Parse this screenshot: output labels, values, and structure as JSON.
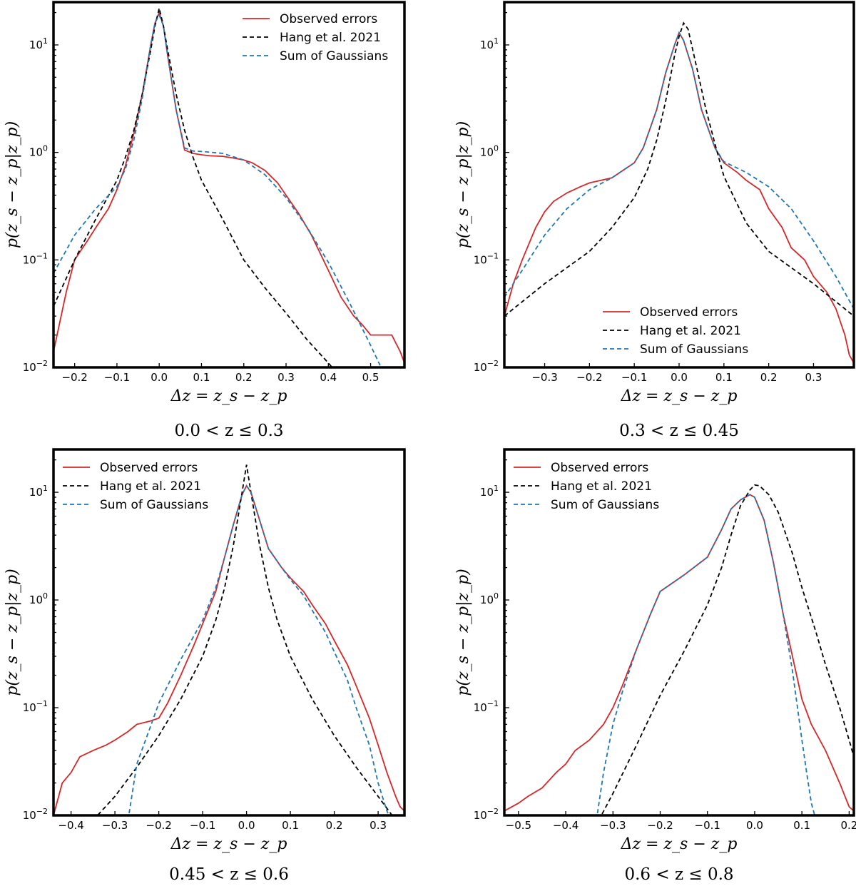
{
  "chart_data": [
    {
      "type": "line",
      "caption": "0.0 < z ≤ 0.3",
      "xlabel": "Δz = z_s − z_p",
      "ylabel": "p(z_s − z_p|z_p)",
      "xlim": [
        -0.25,
        0.58
      ],
      "ylim": [
        0.01,
        25
      ],
      "yscale": "log",
      "xticks": [
        -0.2,
        -0.1,
        0.0,
        0.1,
        0.2,
        0.3,
        0.4,
        0.5
      ],
      "xtick_labels": [
        "−0.2",
        "−0.1",
        "0.0",
        "0.1",
        "0.2",
        "0.3",
        "0.4",
        "0.5"
      ],
      "yticks": [
        0.01,
        0.1,
        1,
        10
      ],
      "legend_position": "top-right",
      "series": [
        {
          "name": "Observed errors",
          "color": "#d62728",
          "dash": "solid",
          "x": [
            -0.25,
            -0.22,
            -0.2,
            -0.17,
            -0.15,
            -0.12,
            -0.1,
            -0.08,
            -0.06,
            -0.04,
            -0.02,
            -0.01,
            0.0,
            0.01,
            0.02,
            0.04,
            0.06,
            0.08,
            0.1,
            0.12,
            0.15,
            0.18,
            0.2,
            0.22,
            0.25,
            0.28,
            0.3,
            0.33,
            0.36,
            0.4,
            0.43,
            0.46,
            0.48,
            0.5,
            0.52,
            0.55,
            0.57,
            0.58
          ],
          "y": [
            0.014,
            0.05,
            0.1,
            0.15,
            0.2,
            0.3,
            0.45,
            0.75,
            1.5,
            3.5,
            10,
            16,
            20,
            15,
            8,
            2.5,
            1.05,
            0.98,
            0.95,
            0.93,
            0.92,
            0.88,
            0.85,
            0.8,
            0.68,
            0.52,
            0.4,
            0.27,
            0.17,
            0.08,
            0.045,
            0.03,
            0.025,
            0.02,
            0.02,
            0.02,
            0.014,
            0.011
          ]
        },
        {
          "name": "Hang et al. 2021",
          "color": "#000000",
          "dash": "dashed",
          "x": [
            -0.25,
            -0.2,
            -0.15,
            -0.1,
            -0.08,
            -0.06,
            -0.04,
            -0.02,
            -0.01,
            0.0,
            0.01,
            0.02,
            0.04,
            0.06,
            0.08,
            0.1,
            0.15,
            0.2,
            0.25,
            0.3,
            0.35,
            0.4,
            0.43
          ],
          "y": [
            0.037,
            0.1,
            0.24,
            0.55,
            0.9,
            1.6,
            3.5,
            9,
            15,
            22,
            15,
            9,
            3.5,
            1.6,
            0.9,
            0.55,
            0.24,
            0.1,
            0.055,
            0.032,
            0.018,
            0.011,
            0.008
          ]
        },
        {
          "name": "Sum of Gaussians",
          "color": "#1f77b4",
          "dash": "dashed",
          "x": [
            -0.25,
            -0.2,
            -0.15,
            -0.1,
            -0.08,
            -0.06,
            -0.04,
            -0.02,
            -0.01,
            0.0,
            0.01,
            0.02,
            0.04,
            0.06,
            0.08,
            0.1,
            0.15,
            0.2,
            0.25,
            0.3,
            0.35,
            0.4,
            0.45,
            0.5,
            0.53
          ],
          "y": [
            0.075,
            0.17,
            0.3,
            0.48,
            0.7,
            1.3,
            3.2,
            10,
            16,
            19,
            15,
            8,
            2.5,
            1.1,
            1.03,
            1.02,
            0.98,
            0.85,
            0.62,
            0.38,
            0.2,
            0.095,
            0.04,
            0.016,
            0.009
          ]
        }
      ]
    },
    {
      "type": "line",
      "caption": "0.3 < z ≤ 0.45",
      "xlabel": "Δz = z_s − z_p",
      "ylabel": "p(z_s − z_p|z_p)",
      "xlim": [
        -0.39,
        0.39
      ],
      "ylim": [
        0.01,
        25
      ],
      "yscale": "log",
      "xticks": [
        -0.3,
        -0.2,
        -0.1,
        0.0,
        0.1,
        0.2,
        0.3
      ],
      "xtick_labels": [
        "−0.3",
        "−0.2",
        "−0.1",
        "0.0",
        "0.1",
        "0.2",
        "0.3"
      ],
      "yticks": [
        0.01,
        0.1,
        1,
        10
      ],
      "legend_position": "lower-center",
      "series": [
        {
          "name": "Observed errors",
          "color": "#d62728",
          "dash": "solid",
          "x": [
            -0.39,
            -0.37,
            -0.35,
            -0.32,
            -0.3,
            -0.28,
            -0.25,
            -0.22,
            -0.2,
            -0.15,
            -0.1,
            -0.08,
            -0.05,
            -0.03,
            -0.01,
            0.0,
            0.01,
            0.03,
            0.05,
            0.08,
            0.1,
            0.13,
            0.15,
            0.18,
            0.2,
            0.23,
            0.25,
            0.28,
            0.3,
            0.33,
            0.35,
            0.37,
            0.38,
            0.39
          ],
          "y": [
            0.03,
            0.06,
            0.1,
            0.2,
            0.28,
            0.35,
            0.42,
            0.48,
            0.52,
            0.58,
            0.8,
            1.1,
            2.5,
            5.5,
            10,
            13,
            11,
            6,
            2.5,
            1.1,
            0.8,
            0.65,
            0.55,
            0.45,
            0.3,
            0.2,
            0.13,
            0.1,
            0.07,
            0.05,
            0.035,
            0.02,
            0.013,
            0.011
          ]
        },
        {
          "name": "Hang et al. 2021",
          "color": "#000000",
          "dash": "dashed",
          "x": [
            -0.39,
            -0.3,
            -0.2,
            -0.15,
            -0.1,
            -0.07,
            -0.05,
            -0.03,
            -0.01,
            0.0,
            0.01,
            0.02,
            0.04,
            0.06,
            0.08,
            0.1,
            0.15,
            0.2,
            0.3,
            0.39
          ],
          "y": [
            0.03,
            0.06,
            0.12,
            0.2,
            0.38,
            0.7,
            1.3,
            3,
            8,
            12,
            16,
            14,
            6,
            2.5,
            1.2,
            0.6,
            0.22,
            0.12,
            0.06,
            0.03
          ]
        },
        {
          "name": "Sum of Gaussians",
          "color": "#1f77b4",
          "dash": "dashed",
          "x": [
            -0.39,
            -0.35,
            -0.3,
            -0.25,
            -0.2,
            -0.15,
            -0.1,
            -0.08,
            -0.05,
            -0.03,
            -0.01,
            0.0,
            0.01,
            0.03,
            0.05,
            0.08,
            0.1,
            0.15,
            0.2,
            0.25,
            0.3,
            0.35,
            0.39
          ],
          "y": [
            0.045,
            0.08,
            0.17,
            0.3,
            0.45,
            0.58,
            0.8,
            1.1,
            2.5,
            5.5,
            10,
            13,
            11,
            6,
            2.5,
            1.1,
            0.82,
            0.65,
            0.48,
            0.3,
            0.15,
            0.07,
            0.035
          ]
        }
      ]
    },
    {
      "type": "line",
      "caption": "0.45 < z ≤ 0.6",
      "xlabel": "Δz = z_s − z_p",
      "ylabel": "p(z_s − z_p|z_p)",
      "xlim": [
        -0.44,
        0.36
      ],
      "ylim": [
        0.01,
        25
      ],
      "yscale": "log",
      "xticks": [
        -0.4,
        -0.3,
        -0.2,
        -0.1,
        0.0,
        0.1,
        0.2,
        0.3
      ],
      "xtick_labels": [
        "−0.4",
        "−0.3",
        "−0.2",
        "−0.1",
        "0.0",
        "0.1",
        "0.2",
        "0.3"
      ],
      "yticks": [
        0.01,
        0.1,
        1,
        10
      ],
      "legend_position": "top-left",
      "series": [
        {
          "name": "Observed errors",
          "color": "#d62728",
          "dash": "solid",
          "x": [
            -0.44,
            -0.42,
            -0.4,
            -0.38,
            -0.35,
            -0.32,
            -0.3,
            -0.27,
            -0.25,
            -0.22,
            -0.2,
            -0.18,
            -0.15,
            -0.12,
            -0.1,
            -0.07,
            -0.05,
            -0.03,
            -0.01,
            0.0,
            0.01,
            0.03,
            0.05,
            0.08,
            0.1,
            0.13,
            0.15,
            0.18,
            0.2,
            0.23,
            0.25,
            0.28,
            0.3,
            0.32,
            0.34,
            0.35,
            0.36
          ],
          "y": [
            0.01,
            0.02,
            0.025,
            0.035,
            0.04,
            0.045,
            0.05,
            0.06,
            0.07,
            0.075,
            0.08,
            0.11,
            0.2,
            0.38,
            0.6,
            1.2,
            2.5,
            5,
            9.5,
            11.5,
            10,
            5.5,
            3,
            2,
            1.6,
            1.2,
            0.9,
            0.6,
            0.42,
            0.25,
            0.16,
            0.08,
            0.045,
            0.025,
            0.015,
            0.012,
            0.011
          ]
        },
        {
          "name": "Hang et al. 2021",
          "color": "#000000",
          "dash": "dashed",
          "x": [
            -0.35,
            -0.3,
            -0.25,
            -0.2,
            -0.15,
            -0.1,
            -0.07,
            -0.05,
            -0.03,
            -0.01,
            0.0,
            0.01,
            0.03,
            0.05,
            0.07,
            0.1,
            0.15,
            0.2,
            0.25,
            0.3,
            0.34
          ],
          "y": [
            0.009,
            0.015,
            0.028,
            0.055,
            0.12,
            0.3,
            0.65,
            1.3,
            3.2,
            10,
            18,
            10,
            3.2,
            1.3,
            0.65,
            0.3,
            0.12,
            0.055,
            0.028,
            0.015,
            0.009
          ]
        },
        {
          "name": "Sum of Gaussians",
          "color": "#1f77b4",
          "dash": "dashed",
          "x": [
            -0.27,
            -0.25,
            -0.22,
            -0.2,
            -0.15,
            -0.1,
            -0.07,
            -0.05,
            -0.03,
            -0.01,
            0.0,
            0.01,
            0.03,
            0.05,
            0.08,
            0.1,
            0.13,
            0.15,
            0.18,
            0.2,
            0.23,
            0.25,
            0.28,
            0.3,
            0.32,
            0.33
          ],
          "y": [
            0.009,
            0.03,
            0.065,
            0.11,
            0.28,
            0.65,
            1.3,
            2.5,
            5,
            9.5,
            11.5,
            10,
            5.5,
            3,
            2,
            1.55,
            1.1,
            0.8,
            0.5,
            0.33,
            0.18,
            0.1,
            0.045,
            0.02,
            0.011,
            0.009
          ]
        }
      ]
    },
    {
      "type": "line",
      "caption": "0.6 < z ≤ 0.8",
      "xlabel": "Δz = z_s − z_p",
      "ylabel": "p(z_s − z_p|z_p)",
      "xlim": [
        -0.53,
        0.21
      ],
      "ylim": [
        0.01,
        25
      ],
      "yscale": "log",
      "xticks": [
        -0.5,
        -0.4,
        -0.3,
        -0.2,
        -0.1,
        0.0,
        0.1,
        0.2
      ],
      "xtick_labels": [
        "−0.5",
        "−0.4",
        "−0.3",
        "−0.2",
        "−0.1",
        "0.0",
        "0.1",
        "0.2"
      ],
      "yticks": [
        0.01,
        0.1,
        1,
        10
      ],
      "legend_position": "top-left",
      "series": [
        {
          "name": "Observed errors",
          "color": "#d62728",
          "dash": "solid",
          "x": [
            -0.53,
            -0.5,
            -0.48,
            -0.45,
            -0.42,
            -0.4,
            -0.38,
            -0.35,
            -0.32,
            -0.3,
            -0.28,
            -0.25,
            -0.22,
            -0.2,
            -0.15,
            -0.1,
            -0.07,
            -0.05,
            -0.03,
            -0.01,
            0.0,
            0.02,
            0.04,
            0.06,
            0.08,
            0.1,
            0.12,
            0.15,
            0.18,
            0.2,
            0.21
          ],
          "y": [
            0.011,
            0.013,
            0.015,
            0.018,
            0.025,
            0.03,
            0.04,
            0.05,
            0.07,
            0.1,
            0.16,
            0.35,
            0.75,
            1.2,
            1.7,
            2.5,
            4.5,
            7,
            8.5,
            9.5,
            9,
            5.5,
            2.2,
            0.75,
            0.3,
            0.12,
            0.07,
            0.04,
            0.02,
            0.012,
            0.011
          ]
        },
        {
          "name": "Hang et al. 2021",
          "color": "#000000",
          "dash": "dashed",
          "x": [
            -0.33,
            -0.3,
            -0.25,
            -0.2,
            -0.15,
            -0.1,
            -0.07,
            -0.05,
            -0.03,
            -0.01,
            0.0,
            0.01,
            0.03,
            0.05,
            0.08,
            0.1,
            0.13,
            0.15,
            0.18,
            0.2,
            0.21
          ],
          "y": [
            0.009,
            0.016,
            0.045,
            0.13,
            0.33,
            0.9,
            2,
            4,
            7.5,
            10.5,
            11.7,
            11.5,
            9.5,
            6.5,
            2.7,
            1.3,
            0.5,
            0.25,
            0.1,
            0.05,
            0.035
          ]
        },
        {
          "name": "Sum of Gaussians",
          "color": "#1f77b4",
          "dash": "dashed",
          "x": [
            -0.335,
            -0.32,
            -0.3,
            -0.28,
            -0.25,
            -0.22,
            -0.2,
            -0.15,
            -0.1,
            -0.07,
            -0.05,
            -0.03,
            -0.01,
            0.0,
            0.02,
            0.04,
            0.06,
            0.08,
            0.1,
            0.11,
            0.12,
            0.13
          ],
          "y": [
            0.009,
            0.025,
            0.07,
            0.14,
            0.35,
            0.75,
            1.2,
            1.7,
            2.5,
            4.5,
            7,
            8.5,
            9.5,
            9,
            5.5,
            2.2,
            0.75,
            0.22,
            0.05,
            0.025,
            0.013,
            0.009
          ]
        }
      ]
    }
  ]
}
